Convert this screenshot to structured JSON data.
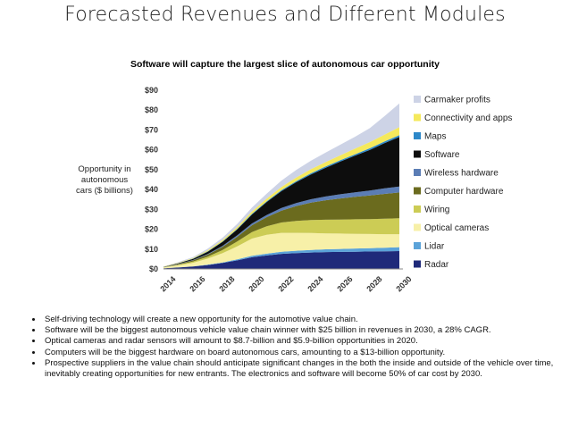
{
  "slide": {
    "title": "Forecasted Revenues and Different Modules",
    "bullets": [
      "Self-driving technology will create a new opportunity for the automotive value chain.",
      "Software will be the biggest autonomous vehicle value chain winner with $25 billion in revenues in 2030, a 28% CAGR.",
      "Optical cameras and radar sensors will amount to $8.7-billion and $5.9-billion opportunities in 2020.",
      "Computers will be the biggest hardware on board autonomous cars, amounting to a $13-billion opportunity.",
      "Prospective suppliers in the value chain should anticipate significant changes in the both the inside and outside of the vehicle over time, inevitably creating opportunities for new entrants. The electronics and software will become 50% of car cost by 2030."
    ]
  },
  "chart_data": {
    "type": "area",
    "stacked": true,
    "title": "Software will capture the largest slice of autonomous car opportunity",
    "ylabel_lines": [
      "Opportunity in",
      "autonomous",
      "cars ($ billions)"
    ],
    "xlabel": "",
    "x": [
      2014,
      2015,
      2016,
      2017,
      2018,
      2019,
      2020,
      2021,
      2022,
      2023,
      2024,
      2025,
      2026,
      2027,
      2028,
      2029,
      2030
    ],
    "xtick_labels": [
      "2014",
      "2016",
      "2018",
      "2020",
      "2022",
      "2024",
      "2026",
      "2028",
      "2030"
    ],
    "xtick_values": [
      2014,
      2016,
      2018,
      2020,
      2022,
      2024,
      2026,
      2028,
      2030
    ],
    "ylim": [
      0,
      90
    ],
    "yticks": [
      0,
      10,
      20,
      30,
      40,
      50,
      60,
      70,
      80,
      90
    ],
    "ytick_labels": [
      "$0",
      "$10",
      "$20",
      "$30",
      "$40",
      "$50",
      "$60",
      "$70",
      "$80",
      "$90"
    ],
    "legend_position": "right",
    "series": [
      {
        "name": "Radar",
        "color": "#1f2a7a",
        "values": [
          0.3,
          0.7,
          1.2,
          2.0,
          3.0,
          4.3,
          5.9,
          6.8,
          7.6,
          8.0,
          8.3,
          8.5,
          8.6,
          8.7,
          8.8,
          8.9,
          9.0
        ]
      },
      {
        "name": "Lidar",
        "color": "#5ba3d9",
        "values": [
          0.0,
          0.1,
          0.1,
          0.2,
          0.3,
          0.5,
          0.7,
          0.9,
          1.1,
          1.2,
          1.3,
          1.4,
          1.5,
          1.6,
          1.7,
          1.8,
          2.0
        ]
      },
      {
        "name": "Optical cameras",
        "color": "#f7f0a8",
        "values": [
          0.4,
          1.0,
          1.8,
          3.0,
          4.6,
          6.6,
          8.7,
          9.5,
          9.5,
          9.0,
          8.5,
          8.0,
          7.7,
          7.4,
          7.1,
          6.8,
          6.5
        ]
      },
      {
        "name": "Wiring",
        "color": "#cccc55",
        "values": [
          0.1,
          0.3,
          0.6,
          1.0,
          1.6,
          2.4,
          3.3,
          4.3,
          5.2,
          6.0,
          6.5,
          6.9,
          7.1,
          7.3,
          7.5,
          7.8,
          8.0
        ]
      },
      {
        "name": "Computer hardware",
        "color": "#6b6b1e",
        "values": [
          0.1,
          0.3,
          0.6,
          1.0,
          1.6,
          2.4,
          3.4,
          4.6,
          6.0,
          7.5,
          8.8,
          9.8,
          10.6,
          11.3,
          11.9,
          12.5,
          13.0
        ]
      },
      {
        "name": "Wireless hardware",
        "color": "#5b7db5",
        "values": [
          0.1,
          0.1,
          0.2,
          0.3,
          0.5,
          0.7,
          0.9,
          1.1,
          1.3,
          1.5,
          1.7,
          1.9,
          2.1,
          2.3,
          2.5,
          2.8,
          3.0
        ]
      },
      {
        "name": "Software",
        "color": "#0d0d0d",
        "values": [
          0.1,
          0.3,
          0.6,
          1.2,
          2.0,
          3.0,
          4.5,
          6.5,
          8.5,
          10.5,
          12.5,
          14.5,
          16.5,
          18.5,
          20.5,
          22.8,
          25.0
        ]
      },
      {
        "name": "Maps",
        "color": "#2d88c9",
        "values": [
          0.0,
          0.1,
          0.1,
          0.2,
          0.2,
          0.3,
          0.4,
          0.4,
          0.5,
          0.5,
          0.6,
          0.6,
          0.7,
          0.7,
          0.8,
          0.8,
          0.9
        ]
      },
      {
        "name": "Connectivity and apps",
        "color": "#f5e95c",
        "values": [
          0.1,
          0.2,
          0.3,
          0.5,
          0.7,
          0.9,
          1.1,
          1.3,
          1.6,
          1.8,
          2.0,
          2.2,
          2.5,
          2.8,
          3.1,
          3.5,
          4.0
        ]
      },
      {
        "name": "Carmaker profits",
        "color": "#cdd3e6",
        "values": [
          0.1,
          0.3,
          0.5,
          0.8,
          1.2,
          1.6,
          2.0,
          2.5,
          3.2,
          3.8,
          4.3,
          4.8,
          5.3,
          6.0,
          7.0,
          9.3,
          12.0
        ]
      }
    ],
    "legend_order": [
      "Carmaker profits",
      "Connectivity and apps",
      "Maps",
      "Software",
      "Wireless hardware",
      "Computer hardware",
      "Wiring",
      "Optical cameras",
      "Lidar",
      "Radar"
    ]
  }
}
